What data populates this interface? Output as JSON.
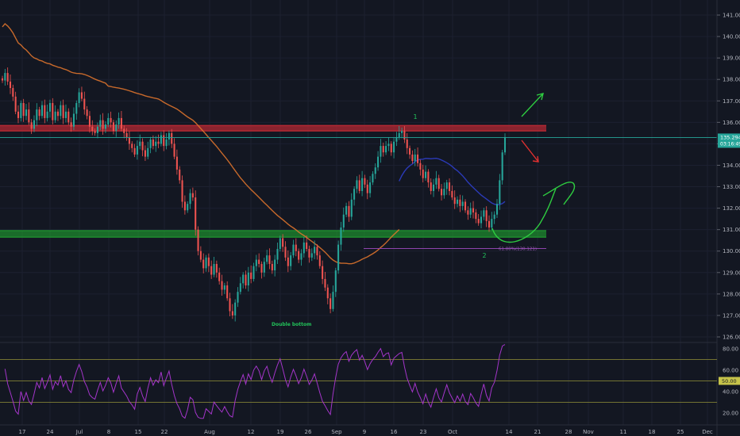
{
  "chart_data": [
    {
      "type": "candlestick",
      "title": "",
      "price_axis": {
        "ticks": [
          "141.000",
          "140.000",
          "139.000",
          "138.000",
          "137.000",
          "136.000",
          "135.000",
          "134.000",
          "133.000",
          "132.000",
          "131.000",
          "130.000",
          "129.000",
          "128.000",
          "127.000",
          "126.000"
        ],
        "range": [
          125.8,
          141.6
        ]
      },
      "time_axis": {
        "ticks": [
          "17",
          "24",
          "Jul",
          "8",
          "15",
          "22",
          "Aug",
          "12",
          "19",
          "26",
          "Sep",
          "9",
          "16",
          "23",
          "Oct",
          "14",
          "21",
          "28",
          "Nov",
          "11",
          "18",
          "25",
          "Dec"
        ]
      },
      "last_price": {
        "value": "135.294",
        "countdown": "03:16:49"
      },
      "zones": [
        {
          "name": "resistance",
          "low": 135.6,
          "high": 135.85,
          "color": "#b22833"
        },
        {
          "name": "support",
          "low": 130.65,
          "high": 130.95,
          "color": "#1e8a2e"
        }
      ],
      "fib_level": {
        "label": "61.80%(130.121)",
        "value": 130.121
      },
      "annotations": [
        {
          "text": "1",
          "color": "#22c25a"
        },
        {
          "text": "2",
          "color": "#22c25a"
        },
        {
          "text": "Double bottom",
          "color": "#22c25a"
        }
      ],
      "candles_close": [
        137.95,
        138.3,
        137.9,
        137.6,
        137.2,
        136.5,
        136.2,
        136.9,
        136.3,
        136.6,
        136.0,
        135.7,
        136.1,
        136.6,
        136.3,
        136.8,
        136.2,
        136.5,
        136.9,
        136.1,
        136.5,
        136.3,
        136.8,
        136.2,
        136.5,
        136.0,
        135.8,
        136.4,
        136.9,
        137.4,
        137.1,
        136.6,
        136.3,
        135.8,
        135.6,
        135.5,
        135.8,
        136.1,
        135.7,
        135.9,
        136.2,
        136.0,
        135.6,
        135.9,
        136.2,
        135.7,
        135.5,
        135.3,
        135.0,
        134.8,
        134.5,
        134.9,
        135.1,
        134.7,
        134.4,
        134.8,
        135.2,
        134.9,
        135.1,
        135.0,
        135.4,
        134.9,
        135.2,
        135.5,
        135.0,
        134.4,
        133.8,
        133.3,
        132.3,
        131.9,
        132.2,
        132.7,
        132.5,
        131.0,
        130.0,
        129.6,
        129.2,
        129.7,
        129.3,
        128.9,
        129.4,
        129.0,
        128.6,
        128.2,
        128.4,
        127.8,
        127.2,
        127.0,
        127.6,
        128.1,
        128.5,
        128.9,
        128.4,
        129.0,
        128.7,
        129.3,
        129.6,
        129.4,
        129.0,
        129.5,
        129.8,
        129.4,
        129.1,
        129.6,
        130.1,
        130.6,
        130.2,
        129.7,
        129.3,
        129.8,
        130.3,
        130.0,
        129.6,
        129.9,
        130.4,
        130.1,
        129.7,
        129.9,
        130.2,
        129.8,
        129.3,
        128.7,
        128.3,
        127.8,
        127.3,
        128.1,
        129.1,
        130.3,
        131.1,
        131.7,
        132.1,
        131.6,
        132.4,
        132.9,
        133.3,
        132.8,
        133.4,
        133.1,
        132.7,
        133.2,
        133.6,
        133.9,
        134.4,
        134.9,
        134.6,
        134.9,
        135.0,
        134.6,
        135.1,
        135.3,
        135.5,
        135.6,
        135.2,
        134.8,
        134.5,
        134.2,
        134.5,
        134.1,
        133.8,
        133.4,
        133.7,
        133.2,
        132.8,
        133.1,
        133.4,
        132.9,
        132.6,
        132.9,
        133.2,
        132.8,
        132.5,
        132.2,
        132.4,
        132.1,
        132.3,
        131.9,
        131.7,
        132.0,
        131.8,
        131.5,
        131.3,
        131.6,
        131.9,
        131.4,
        131.1,
        131.5,
        131.7,
        132.2,
        133.3,
        134.6,
        135.3
      ]
    },
    {
      "type": "line",
      "title": "",
      "rsi_axis": {
        "ticks": [
          "80.00",
          "60.00",
          "50.00",
          "40.00",
          "20.00"
        ],
        "range": [
          12,
          86
        ]
      },
      "levels": [
        70,
        50,
        30
      ],
      "last_value": "50.00"
    }
  ]
}
